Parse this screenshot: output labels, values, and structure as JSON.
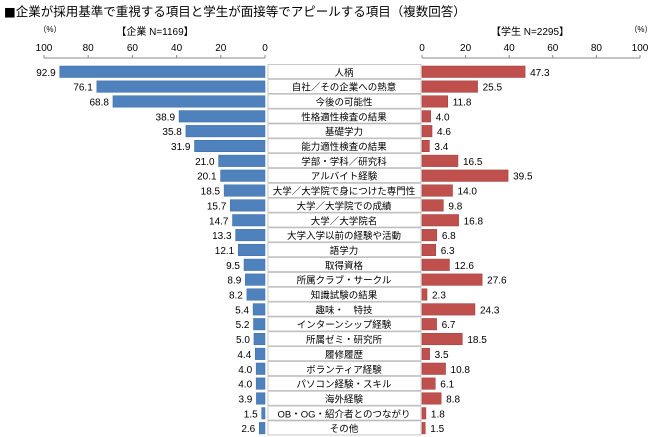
{
  "chart_data": {
    "type": "bar",
    "title": "■企業が採用基準で重視する項目と学生が面接等でアピールする項目（複数回答）",
    "unit": "（%）",
    "categories": [
      "人柄",
      "自社／その企業への熱意",
      "今後の可能性",
      "性格適性検査の結果",
      "基礎学力",
      "能力適性検査の結果",
      "学部・学科／研究科",
      "アルバイト経験",
      "大学／大学院で身につけた専門性",
      "大学／大学院での成績",
      "大学／大学院名",
      "大学入学以前の経験や活動",
      "語学力",
      "取得資格",
      "所属クラブ・サークル",
      "知識試験の結果",
      "趣味・　特技",
      "インターンシップ経験",
      "所属ゼミ・研究所",
      "履修履歴",
      "ボランティア経験",
      "パソコン経験・スキル",
      "海外経験",
      "OB・OG・紹介者とのつながり",
      "その他"
    ],
    "series": [
      {
        "name": "【企業 N=1169】",
        "color": "#4f81bd",
        "side": "left",
        "values": [
          92.9,
          76.1,
          68.8,
          38.9,
          35.8,
          31.9,
          21.0,
          20.1,
          18.5,
          15.7,
          14.7,
          13.3,
          12.1,
          9.5,
          8.9,
          8.2,
          5.4,
          5.2,
          5.0,
          4.4,
          4.0,
          4.0,
          3.9,
          1.5,
          2.6
        ]
      },
      {
        "name": "【学生 N=2295】",
        "color": "#c0504d",
        "side": "right",
        "values": [
          47.3,
          25.5,
          11.8,
          4.0,
          4.6,
          3.4,
          16.5,
          39.5,
          14.0,
          9.8,
          16.8,
          6.8,
          6.3,
          12.6,
          27.6,
          2.3,
          24.3,
          6.7,
          18.5,
          3.5,
          10.8,
          6.1,
          8.8,
          1.8,
          1.5
        ]
      }
    ],
    "xlim": [
      0,
      100
    ],
    "ticks": [
      0,
      20,
      40,
      60,
      80,
      100
    ],
    "grid": false
  }
}
